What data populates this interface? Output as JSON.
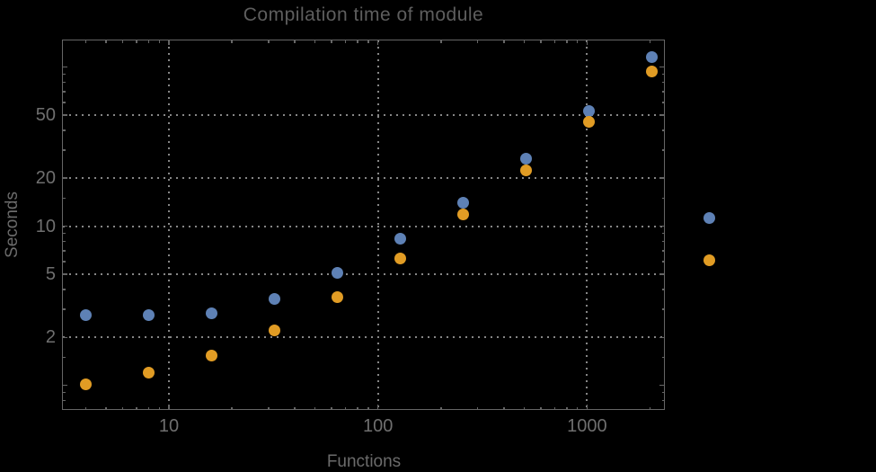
{
  "chart_data": {
    "type": "scatter",
    "title": "Compilation time of module",
    "xlabel": "Functions",
    "ylabel": "Seconds",
    "x_scale": "log",
    "y_scale": "log",
    "xlim": [
      3.08,
      2356
    ],
    "ylim": [
      0.7,
      148.7
    ],
    "grid": "dotted",
    "x": [
      4,
      8,
      16,
      32,
      64,
      128,
      256,
      512,
      1024,
      2048
    ],
    "series": [
      {
        "name": "series-1-blue",
        "color": "#5E81B5",
        "values": [
          2.75,
          2.75,
          2.85,
          3.5,
          5.1,
          8.3,
          14.0,
          26.7,
          53.0,
          115.0
        ]
      },
      {
        "name": "series-2-orange",
        "color": "#E19C24",
        "values": [
          1.02,
          1.2,
          1.53,
          2.2,
          3.6,
          6.3,
          11.8,
          22.3,
          45.0,
          94.0
        ]
      }
    ],
    "x_ticks": {
      "major": [
        {
          "value": 10,
          "label": "10"
        },
        {
          "value": 100,
          "label": "100"
        },
        {
          "value": 1000,
          "label": "1000"
        }
      ],
      "minor": [
        4,
        5,
        6,
        7,
        8,
        9,
        20,
        30,
        40,
        50,
        60,
        70,
        80,
        90,
        200,
        300,
        400,
        500,
        600,
        700,
        800,
        900,
        2000
      ]
    },
    "y_ticks": {
      "major": [
        {
          "value": 1,
          "label": ""
        },
        {
          "value": 2,
          "label": "2"
        },
        {
          "value": 5,
          "label": "5"
        },
        {
          "value": 10,
          "label": "10"
        },
        {
          "value": 20,
          "label": "20"
        },
        {
          "value": 50,
          "label": "50"
        },
        {
          "value": 100,
          "label": ""
        }
      ],
      "minor": [
        0.8,
        0.9,
        1.5,
        3,
        4,
        6,
        7,
        8,
        9,
        15,
        30,
        40,
        60,
        70,
        80,
        90
      ]
    },
    "gridlines": {
      "x": [
        10,
        100,
        1000
      ],
      "y": [
        2,
        5,
        10,
        20,
        50
      ]
    },
    "legend": {
      "position": "right-outside",
      "labels_visible": false,
      "markers": [
        {
          "color": "#5E81B5"
        },
        {
          "color": "#E19C24"
        }
      ]
    }
  },
  "colors": {
    "background": "#000000",
    "frame": "#666666",
    "grid": "#868686",
    "tick_label": "#6f6f6f",
    "axis_label": "#6b6b6b",
    "title": "#5e5e5e"
  }
}
